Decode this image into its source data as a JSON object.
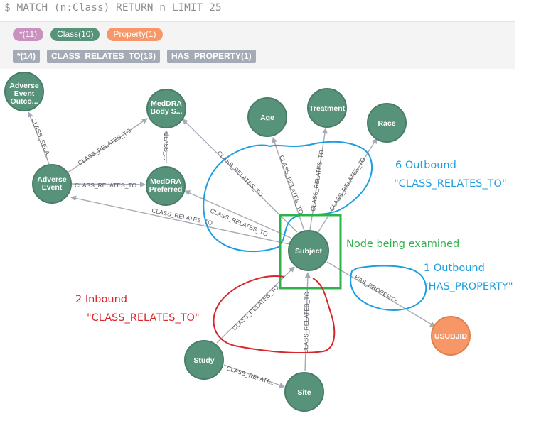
{
  "query": {
    "prompt": "$",
    "text": "MATCH (n:Class) RETURN n LIMIT 25"
  },
  "labels": [
    {
      "label": "*(11)",
      "color": "#c990c0"
    },
    {
      "label": "Class(10)",
      "color": "#57927a"
    },
    {
      "label": "Property(1)",
      "color": "#f79767"
    }
  ],
  "relationship_types": [
    {
      "label": "*(14)"
    },
    {
      "label": "CLASS_RELATES_TO(13)"
    },
    {
      "label": "HAS_PROPERTY(1)"
    }
  ],
  "colors": {
    "class_node": "#57927a",
    "property_node": "#f79767",
    "edge": "#a5abb6"
  },
  "nodes": {
    "adverse_event_outcome": [
      "Adverse",
      "Event",
      "Outco..."
    ],
    "meddra_body": [
      "MedDRA",
      "Body S..."
    ],
    "age": [
      "Age"
    ],
    "treatment": [
      "Treatment"
    ],
    "race": [
      "Race"
    ],
    "adverse_event": [
      "Adverse",
      "Event"
    ],
    "meddra_preferred": [
      "MedDRA",
      "Preferred"
    ],
    "subject": [
      "Subject"
    ],
    "study": [
      "Study"
    ],
    "site": [
      "Site"
    ],
    "usubjid": [
      "USUBJID"
    ]
  },
  "edge_labels": {
    "ae_to_aeo": "CLASS_RELA...",
    "ae_to_body": "CLASS_RELATES_TO",
    "pref_to_body": "CLASS_...",
    "ae_to_pref": "CLASS_RELATES_TO",
    "subj_to_ae": "CLASS_RELATES_TO",
    "subj_to_pref": "CLASS_RELATES_TO",
    "subj_to_body": "CLASS_RELATES_TO",
    "subj_to_age": "CLASS_RELATES_TO",
    "subj_to_treatment": "CLASS_RELATES_TO",
    "subj_to_race": "CLASS_RELATES_TO",
    "subj_to_usubjid": "HAS_PROPERTY",
    "study_to_subj": "CLASS_RELATES_TO",
    "site_to_subj": "CLASS_RELATES_TO",
    "study_to_site": "CLASS_RELATE..."
  },
  "annotations": {
    "outbound6_line1": "6 Outbound",
    "outbound6_line2": "\"CLASS_RELATES_TO\"",
    "examined": "Node being examined",
    "outbound1_line1": "1 Outbound",
    "outbound1_line2": "\"HAS_PROPERTY\"",
    "inbound2_line1": "2 Inbound",
    "inbound2_line2": "\"CLASS_RELATES_TO\"",
    "blue": "#1e9ee0",
    "green": "#2db34a",
    "red": "#d8262a"
  }
}
